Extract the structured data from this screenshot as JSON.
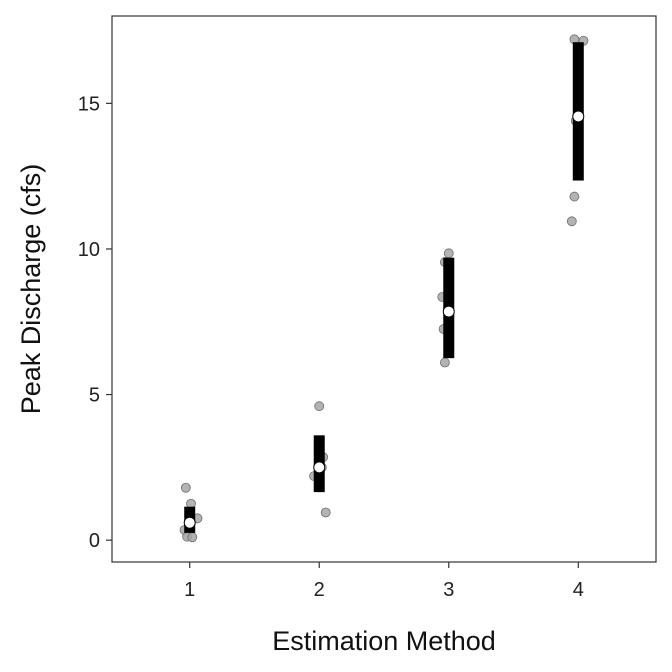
{
  "chart_data": {
    "type": "scatter",
    "title": "",
    "xlabel": "Estimation Method",
    "ylabel": "Peak Discharge (cfs)",
    "xlim": [
      0.4,
      4.6
    ],
    "ylim": [
      -0.75,
      18.0
    ],
    "x_ticks": [
      1,
      2,
      3,
      4
    ],
    "y_ticks": [
      0,
      5,
      10,
      15
    ],
    "grid": false,
    "legend": "none",
    "colors": {
      "raw_points": "#a6a6a6",
      "raw_point_stroke": "#6e6e6e",
      "interval_bar": "#000000",
      "mean_marker": "#ffffff"
    },
    "raw_points": [
      {
        "x": 0.97,
        "y": 1.8
      },
      {
        "x": 1.01,
        "y": 1.25
      },
      {
        "x": 1.06,
        "y": 0.75
      },
      {
        "x": 0.96,
        "y": 0.35
      },
      {
        "x": 0.98,
        "y": 0.12
      },
      {
        "x": 1.02,
        "y": 0.1
      },
      {
        "x": 1.0,
        "y": 0.55
      },
      {
        "x": 2.0,
        "y": 4.6
      },
      {
        "x": 2.03,
        "y": 2.85
      },
      {
        "x": 1.96,
        "y": 2.2
      },
      {
        "x": 2.02,
        "y": 2.5
      },
      {
        "x": 2.05,
        "y": 0.95
      },
      {
        "x": 3.0,
        "y": 9.85
      },
      {
        "x": 2.97,
        "y": 9.55
      },
      {
        "x": 2.95,
        "y": 8.35
      },
      {
        "x": 2.96,
        "y": 7.25
      },
      {
        "x": 2.97,
        "y": 6.1
      },
      {
        "x": 3.0,
        "y": 7.85
      },
      {
        "x": 3.97,
        "y": 17.2
      },
      {
        "x": 4.04,
        "y": 17.15
      },
      {
        "x": 3.98,
        "y": 14.4
      },
      {
        "x": 3.97,
        "y": 11.8
      },
      {
        "x": 3.95,
        "y": 10.95
      },
      {
        "x": 4.0,
        "y": 14.5
      }
    ],
    "summary": [
      {
        "x": 1,
        "mean": 0.6,
        "lower": 0.25,
        "upper": 1.15
      },
      {
        "x": 2,
        "mean": 2.5,
        "lower": 1.65,
        "upper": 3.6
      },
      {
        "x": 3,
        "mean": 7.85,
        "lower": 6.25,
        "upper": 9.7
      },
      {
        "x": 4,
        "mean": 14.55,
        "lower": 12.35,
        "upper": 17.1
      }
    ]
  }
}
